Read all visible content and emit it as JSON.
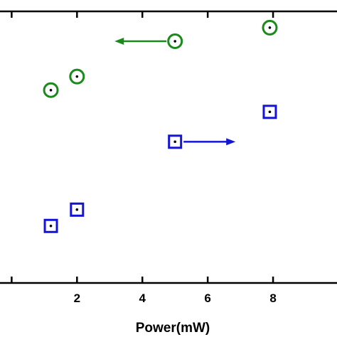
{
  "chart_data": {
    "type": "scatter",
    "title": "",
    "xlabel": "Power(mW)",
    "ylabel": "",
    "xlim": [
      -0.4,
      10.0
    ],
    "x_ticks": [
      0,
      2,
      4,
      6,
      8,
      10
    ],
    "x_tick_labels": [
      "2",
      "4",
      "6",
      "8"
    ],
    "grid": false,
    "series": [
      {
        "marker": "circle-dot",
        "color": "#1a8a1a",
        "axis": "left",
        "x": [
          1.2,
          2.0,
          5.0,
          7.9
        ],
        "y": [
          0.71,
          0.76,
          0.89,
          0.94
        ]
      },
      {
        "marker": "square-dot",
        "color": "#1414d4",
        "axis": "right",
        "x": [
          1.2,
          2.0,
          5.0,
          7.9
        ],
        "y": [
          0.21,
          0.27,
          0.52,
          0.63
        ]
      }
    ],
    "axis_indicators": [
      {
        "series": 0,
        "direction": "left",
        "color": "#1a8a1a"
      },
      {
        "series": 1,
        "direction": "right",
        "color": "#1414d4"
      }
    ]
  }
}
